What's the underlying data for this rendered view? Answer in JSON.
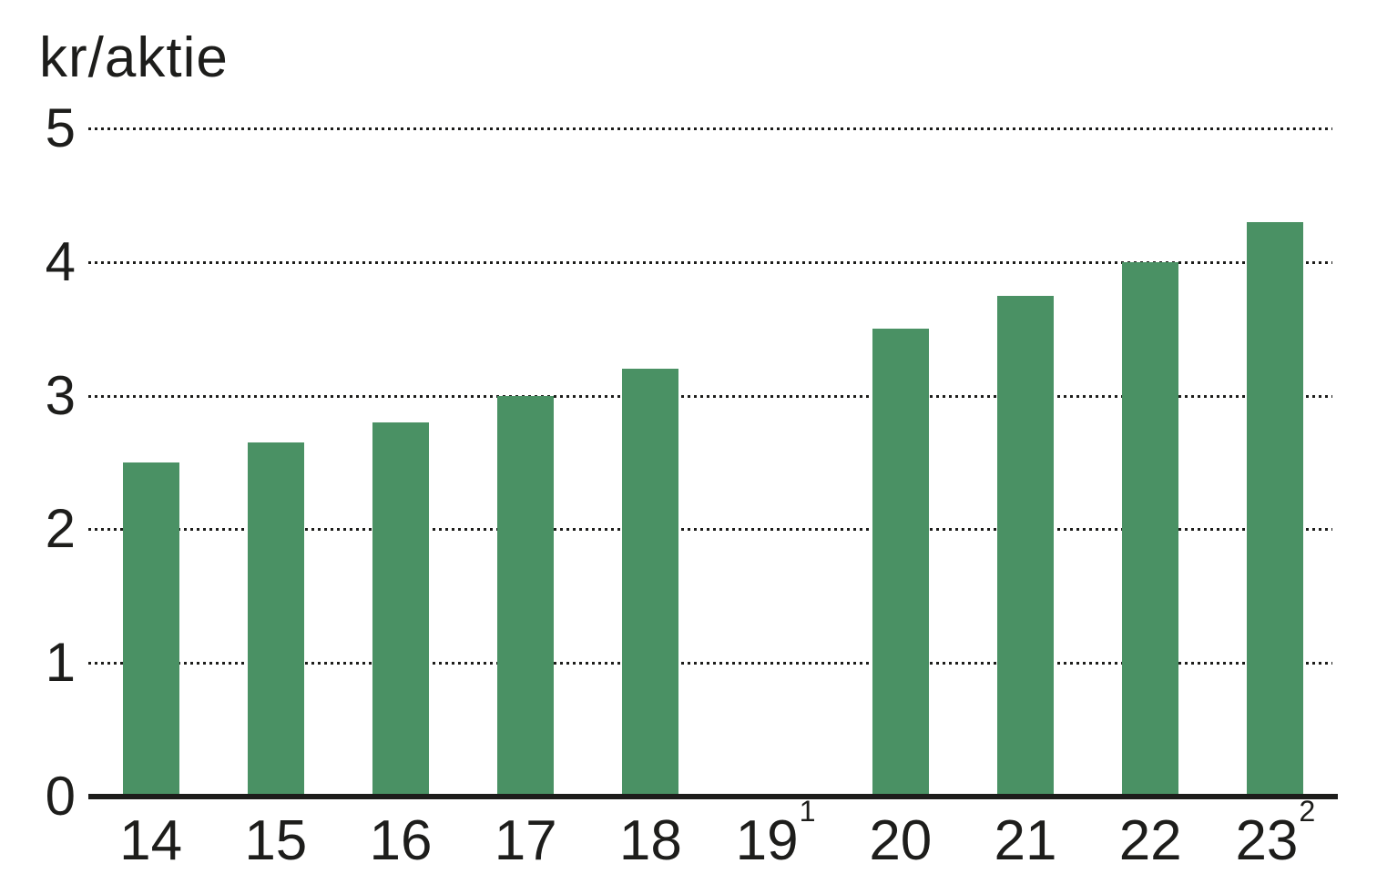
{
  "chart_data": {
    "type": "bar",
    "title": "kr/aktie",
    "ylabel": "kr/aktie",
    "xlabel": "",
    "categories": [
      {
        "label": "14",
        "sup": ""
      },
      {
        "label": "15",
        "sup": ""
      },
      {
        "label": "16",
        "sup": ""
      },
      {
        "label": "17",
        "sup": ""
      },
      {
        "label": "18",
        "sup": ""
      },
      {
        "label": "19",
        "sup": "1"
      },
      {
        "label": "20",
        "sup": ""
      },
      {
        "label": "21",
        "sup": ""
      },
      {
        "label": "22",
        "sup": ""
      },
      {
        "label": "23",
        "sup": "2"
      }
    ],
    "values": [
      2.5,
      2.65,
      2.8,
      3.0,
      3.2,
      0,
      3.5,
      3.75,
      4.0,
      4.3
    ],
    "ylim": [
      0,
      5
    ],
    "yticks": [
      0,
      1,
      2,
      3,
      4,
      5
    ],
    "grid": "dotted-horizontal",
    "legend": "none",
    "bar_color": "#4a9164",
    "axis_color": "#1d1d1b",
    "text_color": "#1d1d1b",
    "background": "#ffffff"
  }
}
